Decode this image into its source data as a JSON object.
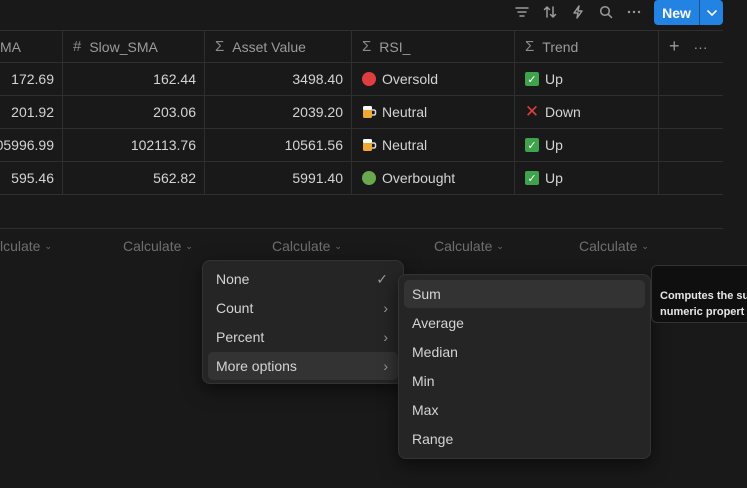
{
  "toolbar": {
    "icons": [
      "filter-icon",
      "sort-icon",
      "automation-icon",
      "search-icon",
      "more-icon"
    ],
    "new_label": "New"
  },
  "table": {
    "columns": [
      {
        "icon": "",
        "label": "MA"
      },
      {
        "icon": "#",
        "label": "Slow_SMA"
      },
      {
        "icon": "Σ",
        "label": "Asset Value"
      },
      {
        "icon": "Σ",
        "label": "RSI_"
      },
      {
        "icon": "Σ",
        "label": "Trend"
      }
    ],
    "add_column_symbol": "+",
    "column_more_symbol": "···",
    "rows": [
      {
        "ma": "172.69",
        "slow_sma": "162.44",
        "asset_value": "3498.40",
        "rsi_icon": "red-circle",
        "rsi": "Oversold",
        "trend_icon": "green-check",
        "trend": "Up"
      },
      {
        "ma": "201.92",
        "slow_sma": "203.06",
        "asset_value": "2039.20",
        "rsi_icon": "beer-mug",
        "rsi": "Neutral",
        "trend_icon": "red-cross",
        "trend": "Down"
      },
      {
        "ma": "05996.99",
        "slow_sma": "102113.76",
        "asset_value": "10561.56",
        "rsi_icon": "beer-mug",
        "rsi": "Neutral",
        "trend_icon": "green-check",
        "trend": "Up"
      },
      {
        "ma": "595.46",
        "slow_sma": "562.82",
        "asset_value": "5991.40",
        "rsi_icon": "green-circle",
        "rsi": "Overbought",
        "trend_icon": "green-check",
        "trend": "Up"
      }
    ],
    "calculate": [
      "lculate",
      "Calculate",
      "Calculate",
      "Calculate",
      "Calculate"
    ]
  },
  "calc_menu": {
    "items": [
      {
        "label": "None",
        "right": "✓"
      },
      {
        "label": "Count",
        "right": "›"
      },
      {
        "label": "Percent",
        "right": "›"
      },
      {
        "label": "More options",
        "right": "›"
      }
    ]
  },
  "more_options_menu": {
    "items": [
      "Sum",
      "Average",
      "Median",
      "Min",
      "Max",
      "Range"
    ]
  },
  "tooltip": {
    "line1": "Computes the su",
    "line2": "numeric propert"
  },
  "colors": {
    "accent": "#2383e2",
    "background": "#191919",
    "menu_bg": "#252525",
    "red_dot": "#e03e3e",
    "green_dot": "#6aa84f",
    "check_green": "#3fa34d"
  }
}
